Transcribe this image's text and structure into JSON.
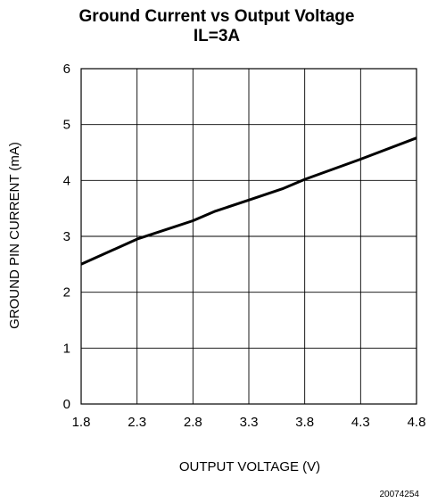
{
  "chart_data": {
    "type": "line",
    "title": "Ground Current vs Output Voltage",
    "subtitle": "IL=3A",
    "xlabel": "OUTPUT VOLTAGE (V)",
    "ylabel": "GROUND PIN CURRENT (mA)",
    "xlim": [
      1.8,
      4.8
    ],
    "ylim": [
      0,
      6
    ],
    "x_ticks": [
      "1.8",
      "2.3",
      "2.8",
      "3.3",
      "3.8",
      "4.3",
      "4.8"
    ],
    "y_ticks": [
      "0",
      "1",
      "2",
      "3",
      "4",
      "5",
      "6"
    ],
    "grid": true,
    "series": [
      {
        "x": [
          1.8,
          2.3,
          2.8,
          3.0,
          3.3,
          3.6,
          3.8,
          4.3,
          4.8
        ],
        "y": [
          2.5,
          2.95,
          3.28,
          3.45,
          3.65,
          3.85,
          4.02,
          4.38,
          4.76
        ]
      }
    ],
    "figure_id": "20074254"
  }
}
